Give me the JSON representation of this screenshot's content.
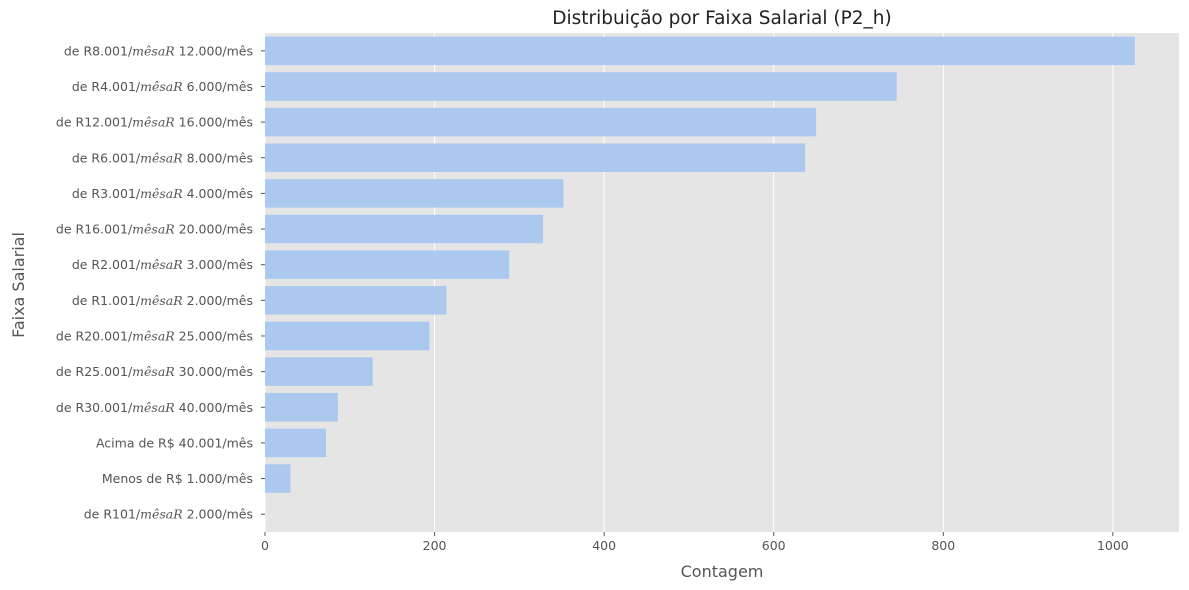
{
  "chart_data": {
    "type": "bar",
    "orientation": "horizontal",
    "title": "Distribuição por Faixa Salarial (P2_h)",
    "xlabel": "Contagem",
    "ylabel": "Faixa Salarial",
    "xlim": [
      0,
      1078
    ],
    "xticks": [
      0,
      200,
      400,
      600,
      800,
      1000
    ],
    "grid": true,
    "bar_color": "#abc9ee",
    "background_color": "#e5e5e5",
    "categories": [
      [
        {
          "t": "de R8.001/"
        },
        {
          "t": "mêsaR",
          "i": true
        },
        {
          "t": " 12.000/mês"
        }
      ],
      [
        {
          "t": "de R4.001/"
        },
        {
          "t": "mêsaR",
          "i": true
        },
        {
          "t": " 6.000/mês"
        }
      ],
      [
        {
          "t": "de R12.001/"
        },
        {
          "t": "mêsaR",
          "i": true
        },
        {
          "t": " 16.000/mês"
        }
      ],
      [
        {
          "t": "de R6.001/"
        },
        {
          "t": "mêsaR",
          "i": true
        },
        {
          "t": " 8.000/mês"
        }
      ],
      [
        {
          "t": "de R3.001/"
        },
        {
          "t": "mêsaR",
          "i": true
        },
        {
          "t": " 4.000/mês"
        }
      ],
      [
        {
          "t": "de R16.001/"
        },
        {
          "t": "mêsaR",
          "i": true
        },
        {
          "t": " 20.000/mês"
        }
      ],
      [
        {
          "t": "de R2.001/"
        },
        {
          "t": "mêsaR",
          "i": true
        },
        {
          "t": " 3.000/mês"
        }
      ],
      [
        {
          "t": "de R1.001/"
        },
        {
          "t": "mêsaR",
          "i": true
        },
        {
          "t": " 2.000/mês"
        }
      ],
      [
        {
          "t": "de R20.001/"
        },
        {
          "t": "mêsaR",
          "i": true
        },
        {
          "t": " 25.000/mês"
        }
      ],
      [
        {
          "t": "de R25.001/"
        },
        {
          "t": "mêsaR",
          "i": true
        },
        {
          "t": " 30.000/mês"
        }
      ],
      [
        {
          "t": "de R30.001/"
        },
        {
          "t": "mêsaR",
          "i": true
        },
        {
          "t": " 40.000/mês"
        }
      ],
      [
        {
          "t": "Acima de R$ 40.001/mês"
        }
      ],
      [
        {
          "t": "Menos de R$ 1.000/mês"
        }
      ],
      [
        {
          "t": "de R101/"
        },
        {
          "t": "mêsaR",
          "i": true
        },
        {
          "t": " 2.000/mês"
        }
      ]
    ],
    "values": [
      1026,
      745,
      650,
      637,
      352,
      328,
      288,
      214,
      194,
      127,
      86,
      72,
      30,
      0
    ]
  }
}
